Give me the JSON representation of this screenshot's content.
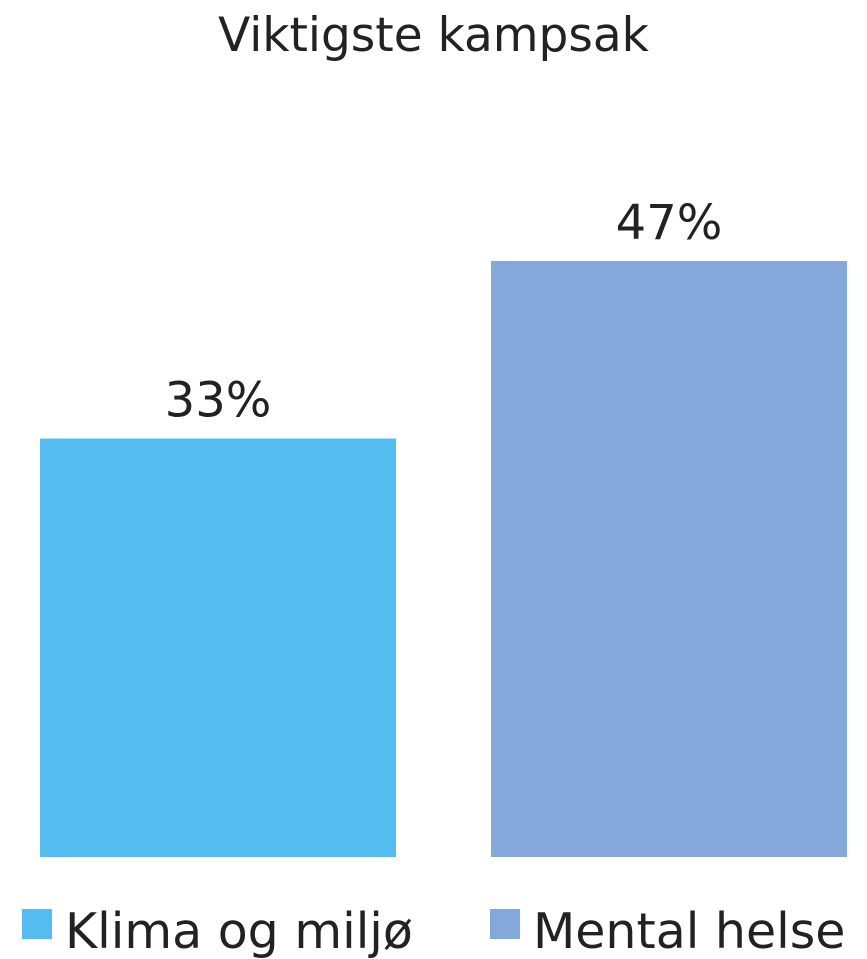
{
  "chart_data": {
    "type": "bar",
    "title": "Viktigste kampsak",
    "xlabel": "",
    "ylabel": "",
    "grid": false,
    "legend_position": "bottom",
    "series": [
      {
        "name": "Klima og miljø",
        "values": [
          33
        ],
        "label": "33%",
        "color": "#55BCF0"
      },
      {
        "name": "Mental helse",
        "values": [
          47
        ],
        "label": "47%",
        "color": "#84A8DA"
      }
    ],
    "ylim": [
      0,
      47
    ]
  }
}
